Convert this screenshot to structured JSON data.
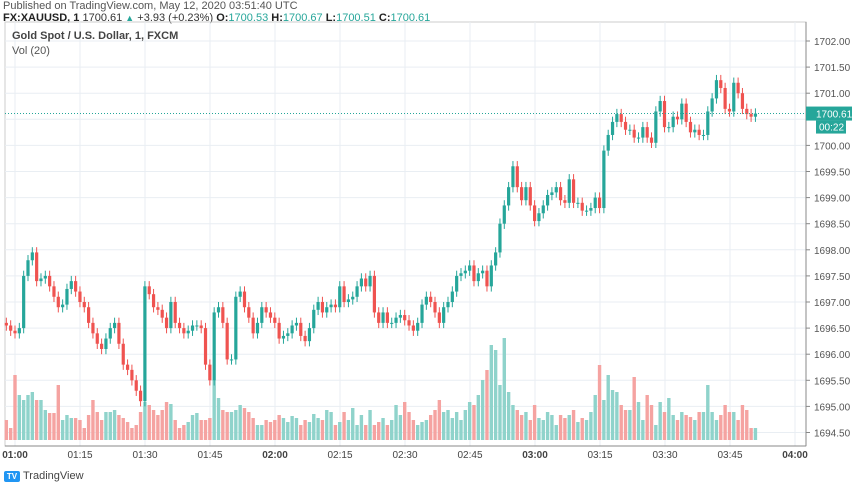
{
  "published": "Published on TradingView.com, May 12, 2020 03:51:40 UTC",
  "symbol": {
    "ticker": "FX:XAUUSD, 1",
    "last": "1700.61",
    "arrow": "▲",
    "change": "+3.93 (+0.23%)",
    "o_label": "O:",
    "o": "1700.53",
    "h_label": "H:",
    "h": "1700.67",
    "l_label": "L:",
    "l": "1700.51",
    "c_label": "C:",
    "c": "1700.61"
  },
  "legend": {
    "title": "Gold Spot / U.S. Dollar, 1, FXCM",
    "volume": "Vol (20)"
  },
  "price_label": "1700.61",
  "countdown": "00:22",
  "brand": "TradingView",
  "colors": {
    "up": "#26a69a",
    "down": "#ef5350",
    "vol_up": "#8fd3cb",
    "vol_down": "#f5a3a1",
    "grid": "#e9eef3"
  },
  "chart_data": {
    "type": "candlestick",
    "interval": "1 minute",
    "start_time": "00:58",
    "ylim": [
      1694.3,
      1702.2
    ],
    "y_ticks": [
      "1702.00",
      "1701.50",
      "1701.00",
      "1700.00",
      "1699.50",
      "1699.00",
      "1698.50",
      "1698.00",
      "1697.50",
      "1697.00",
      "1696.50",
      "1696.00",
      "1695.50",
      "1695.00",
      "1694.50"
    ],
    "x_ticks": [
      "01:00",
      "01:15",
      "01:30",
      "01:45",
      "02:00",
      "02:15",
      "02:30",
      "02:45",
      "03:00",
      "03:15",
      "03:30",
      "03:45",
      "04:00"
    ],
    "grid": true,
    "closes": [
      1696.55,
      1696.45,
      1696.4,
      1696.5,
      1697.5,
      1697.8,
      1697.95,
      1697.4,
      1697.45,
      1697.5,
      1697.3,
      1697.1,
      1696.9,
      1696.95,
      1697.25,
      1697.4,
      1697.2,
      1697.0,
      1696.9,
      1696.6,
      1696.4,
      1696.2,
      1696.1,
      1696.3,
      1696.5,
      1696.6,
      1696.2,
      1695.8,
      1695.7,
      1695.5,
      1695.3,
      1695.1,
      1697.3,
      1697.15,
      1696.9,
      1696.85,
      1696.7,
      1696.5,
      1697.0,
      1696.6,
      1696.5,
      1696.4,
      1696.45,
      1696.55,
      1696.55,
      1696.5,
      1695.8,
      1695.5,
      1696.8,
      1696.9,
      1696.6,
      1695.9,
      1695.9,
      1697.1,
      1697.2,
      1696.9,
      1696.7,
      1696.4,
      1696.6,
      1696.9,
      1696.8,
      1696.7,
      1696.6,
      1696.3,
      1696.35,
      1696.4,
      1696.55,
      1696.6,
      1696.35,
      1696.25,
      1696.5,
      1696.85,
      1697.0,
      1696.8,
      1696.9,
      1696.95,
      1696.9,
      1697.3,
      1697.0,
      1697.05,
      1697.1,
      1697.3,
      1697.45,
      1697.3,
      1697.5,
      1696.8,
      1696.6,
      1696.8,
      1696.6,
      1696.6,
      1696.7,
      1696.75,
      1696.65,
      1696.55,
      1696.45,
      1696.6,
      1696.95,
      1697.1,
      1697.0,
      1696.8,
      1696.6,
      1696.9,
      1697.0,
      1697.2,
      1697.5,
      1697.55,
      1697.6,
      1697.7,
      1697.4,
      1697.55,
      1697.6,
      1697.3,
      1697.7,
      1697.95,
      1698.5,
      1698.85,
      1699.2,
      1699.6,
      1699.2,
      1698.95,
      1699.2,
      1698.85,
      1698.55,
      1698.7,
      1698.85,
      1699.05,
      1699.1,
      1699.2,
      1698.95,
      1698.9,
      1699.35,
      1698.9,
      1698.9,
      1698.75,
      1698.75,
      1698.8,
      1699.0,
      1698.8,
      1699.9,
      1700.2,
      1700.45,
      1700.6,
      1700.45,
      1700.3,
      1700.3,
      1700.15,
      1700.15,
      1700.35,
      1700.15,
      1700.05,
      1700.65,
      1700.85,
      1700.35,
      1700.35,
      1700.55,
      1700.5,
      1700.8,
      1700.45,
      1700.25,
      1700.3,
      1700.2,
      1700.2,
      1700.65,
      1700.9,
      1701.25,
      1701.1,
      1700.7,
      1700.65,
      1701.2,
      1701.0,
      1700.7,
      1700.6,
      1700.55,
      1700.61
    ],
    "volume_relative": [
      20,
      12,
      65,
      45,
      40,
      45,
      48,
      40,
      40,
      30,
      27,
      27,
      55,
      20,
      25,
      22,
      22,
      20,
      12,
      25,
      40,
      28,
      20,
      28,
      28,
      30,
      25,
      22,
      18,
      12,
      15,
      28,
      38,
      35,
      30,
      25,
      30,
      38,
      36,
      20,
      12,
      15,
      18,
      25,
      27,
      20,
      20,
      22,
      60,
      42,
      30,
      28,
      28,
      30,
      35,
      32,
      28,
      22,
      15,
      15,
      20,
      18,
      20,
      25,
      22,
      18,
      24,
      22,
      15,
      20,
      18,
      26,
      22,
      20,
      30,
      28,
      15,
      18,
      28,
      20,
      32,
      15,
      25,
      15,
      30,
      15,
      18,
      22,
      15,
      20,
      35,
      25,
      38,
      28,
      20,
      15,
      18,
      20,
      25,
      30,
      40,
      28,
      30,
      22,
      28,
      20,
      30,
      38,
      35,
      45,
      60,
      70,
      95,
      90,
      55,
      102,
      48,
      35,
      30,
      25,
      28,
      20,
      35,
      22,
      20,
      28,
      25,
      15,
      25,
      22,
      25,
      30,
      18,
      22,
      20,
      28,
      45,
      75,
      40,
      65,
      50,
      48,
      35,
      30,
      30,
      63,
      38,
      20,
      45,
      35,
      15,
      38,
      28,
      42,
      25,
      20,
      28,
      25,
      23,
      20,
      28,
      28,
      55,
      28,
      20,
      25,
      35,
      28,
      28,
      20,
      35,
      30,
      12,
      12
    ]
  }
}
